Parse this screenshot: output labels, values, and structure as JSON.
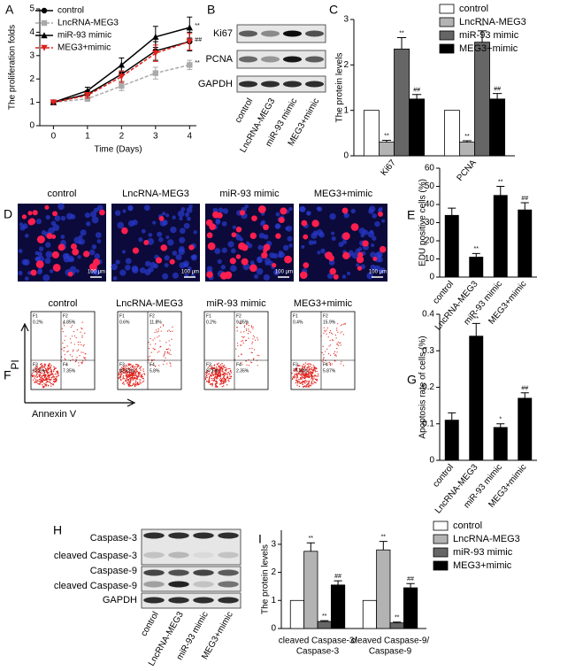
{
  "chart_data": [
    {
      "type": "line",
      "label": "A",
      "xlabel": "Time (Days)",
      "ylabel": "The proliferation folds",
      "x": [
        0,
        1,
        2,
        3,
        4
      ],
      "xlim": [
        -0.4,
        4.2
      ],
      "xticks": [
        0,
        1,
        2,
        3,
        4
      ],
      "ylim": [
        0,
        5
      ],
      "yticks": [
        0,
        1,
        2,
        3,
        4,
        5
      ],
      "legend": "upper left",
      "series": [
        {
          "name": "control",
          "color": "#000000",
          "marker": "circle",
          "dash": false,
          "values": [
            1,
            1.35,
            2.2,
            3.2,
            3.6
          ],
          "errors": [
            0,
            0.15,
            0.3,
            0.4,
            0.4
          ]
        },
        {
          "name": "LncRNA-MEG3",
          "color": "#aaaaaa",
          "marker": "square",
          "dash": true,
          "values": [
            1,
            1.15,
            1.7,
            2.25,
            2.6
          ],
          "errors": [
            0,
            0.1,
            0.2,
            0.25,
            0.2
          ],
          "annotation": "**"
        },
        {
          "name": "miR-93 mimic",
          "color": "#000000",
          "marker": "triangle",
          "dash": false,
          "values": [
            1,
            1.5,
            2.6,
            3.8,
            4.2
          ],
          "errors": [
            0,
            0.15,
            0.3,
            0.45,
            0.45
          ],
          "annotation": "**"
        },
        {
          "name": "MEG3+mimic",
          "color": "#e0201b",
          "marker": "triangle-down",
          "dash": true,
          "values": [
            1,
            1.3,
            2.1,
            3.1,
            3.6
          ],
          "errors": [
            0,
            0.12,
            0.25,
            0.35,
            0.35
          ],
          "annotation": "##"
        }
      ]
    },
    {
      "type": "bar",
      "label": "C",
      "ylabel": "The protein levels",
      "categories": [
        "Ki67",
        "PCNA"
      ],
      "rotate_labels": true,
      "ylim": [
        0,
        3
      ],
      "yticks": [
        0,
        1,
        2,
        3
      ],
      "legend": "upper right",
      "series": [
        {
          "name": "control",
          "color": "#ffffff",
          "values": [
            1,
            1
          ],
          "errors": [
            0,
            0
          ],
          "annotations": [
            null,
            null
          ]
        },
        {
          "name": "LncRNA-MEG3",
          "color": "#b3b3b3",
          "values": [
            0.3,
            0.3
          ],
          "errors": [
            0.04,
            0.03
          ],
          "annotations": [
            "**",
            "**"
          ]
        },
        {
          "name": "miR-93 mimic",
          "color": "#666666",
          "values": [
            2.35,
            2.5
          ],
          "errors": [
            0.25,
            0.25
          ],
          "annotations": [
            "**",
            "**"
          ]
        },
        {
          "name": "MEG3+mimic",
          "color": "#000000",
          "values": [
            1.25,
            1.25
          ],
          "errors": [
            0.1,
            0.12
          ],
          "annotations": [
            "##",
            "##"
          ]
        }
      ]
    },
    {
      "type": "bar",
      "label": "E",
      "ylabel": "EDU positive cells (%)",
      "categories": [
        "control",
        "LncRNA-MEG3",
        "miR-93 mimic",
        "MEG3+mimic"
      ],
      "rotate_labels": true,
      "ylim": [
        0,
        60
      ],
      "yticks": [
        0,
        10,
        20,
        30,
        40,
        50,
        60
      ],
      "series": [
        {
          "color": "#000000",
          "values": [
            34,
            11,
            45,
            37
          ],
          "errors": [
            4,
            2,
            5,
            4
          ],
          "annotations": [
            null,
            "**",
            "**",
            "##"
          ]
        }
      ]
    },
    {
      "type": "bar",
      "label": "G",
      "ylabel": "Apoptosis rate of cells (%)",
      "categories": [
        "control",
        "LncRNA-MEG3",
        "miR-93 mimic",
        "MEG3+mimic"
      ],
      "rotate_labels": true,
      "ylim": [
        0,
        0.4
      ],
      "yticks": [
        0,
        0.1,
        0.2,
        0.3,
        0.4
      ],
      "series": [
        {
          "color": "#000000",
          "values": [
            0.11,
            0.34,
            0.09,
            0.17
          ],
          "errors": [
            0.02,
            0.035,
            0.01,
            0.015
          ],
          "annotations": [
            null,
            "**",
            "*",
            "##"
          ]
        }
      ]
    },
    {
      "type": "bar",
      "label": "I",
      "ylabel": "The protein levels",
      "categories": [
        [
          "cleaved Caspase-3/",
          "Caspase-3"
        ],
        [
          "cleaved Caspase-9/",
          "Caspase-9"
        ]
      ],
      "rotate_labels": false,
      "ylim": [
        0,
        3.5
      ],
      "yticks": [
        0,
        1,
        2,
        3
      ],
      "legend": "upper right",
      "series": [
        {
          "name": "control",
          "color": "#ffffff",
          "values": [
            1,
            1
          ],
          "errors": [
            0,
            0
          ],
          "annotations": [
            null,
            null
          ]
        },
        {
          "name": "LncRNA-MEG3",
          "color": "#b3b3b3",
          "values": [
            2.75,
            2.8
          ],
          "errors": [
            0.3,
            0.3
          ],
          "annotations": [
            "**",
            "**"
          ]
        },
        {
          "name": "miR-93 mimic",
          "color": "#666666",
          "values": [
            0.25,
            0.2
          ],
          "errors": [
            0.03,
            0.03
          ],
          "annotations": [
            "**",
            "**"
          ]
        },
        {
          "name": "MEG3+mimic",
          "color": "#000000",
          "values": [
            1.55,
            1.45
          ],
          "errors": [
            0.15,
            0.15
          ],
          "annotations": [
            "##",
            "##"
          ]
        }
      ]
    }
  ],
  "blots": [
    {
      "label": "B",
      "rows": [
        "Ki67",
        "PCNA",
        "GAPDH"
      ],
      "lanes": [
        "control",
        "LncRNA-MEG3",
        "miR-93 mimic",
        "MEG3+mimic"
      ]
    },
    {
      "label": "H",
      "rows": [
        "Caspase-3",
        "cleaved Caspase-3",
        "Caspase-9",
        "cleaved Caspase-9",
        "GAPDH"
      ],
      "lanes": [
        "control",
        "LncRNA-MEG3",
        "miR-93 mimic",
        "MEG3+mimic"
      ]
    }
  ],
  "microscopy": {
    "label": "D",
    "titles": [
      "control",
      "LncRNA-MEG3",
      "miR-93 mimic",
      "MEG3+mimic"
    ],
    "scale_bar": "100 μm"
  },
  "flow": {
    "label": "F",
    "ylabel": "PI",
    "xlabel": "Annexin V",
    "quadrant_names": [
      "F1",
      "F2",
      "F3",
      "F4"
    ],
    "panels": [
      {
        "title": "control",
        "quadrants": [
          "0.2%",
          "4.85%",
          "87.6%",
          "7.35%"
        ]
      },
      {
        "title": "LncRNA-MEG3",
        "quadrants": [
          "0.6%",
          "11.8%",
          "82.62%",
          "5.8%"
        ]
      },
      {
        "title": "miR-93 mimic",
        "quadrants": [
          "0.2%",
          "9.85%",
          "87.6%",
          "2.35%"
        ]
      },
      {
        "title": "MEG3+mimic",
        "quadrants": [
          "0.4%",
          "15.9%",
          "77.83%",
          "5.87%"
        ]
      }
    ]
  }
}
